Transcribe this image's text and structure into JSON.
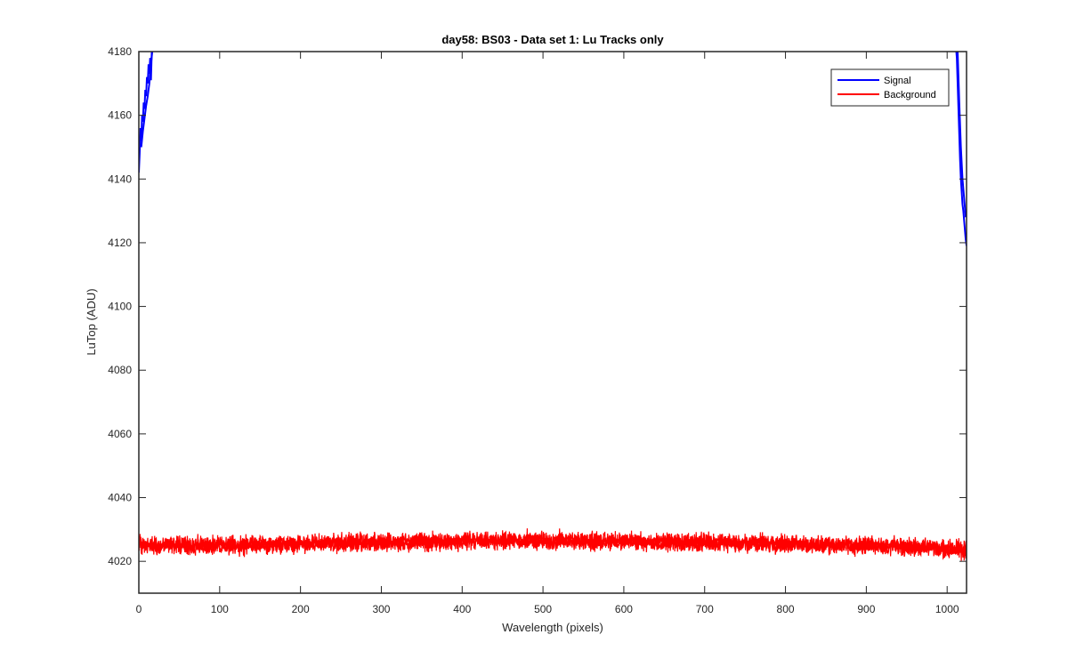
{
  "chart_data": {
    "type": "line",
    "title": "day58: BS03 - Data set 1: Lu Tracks only",
    "xlabel": "Wavelength (pixels)",
    "ylabel": "LuTop (ADU)",
    "xlim": [
      0,
      1024
    ],
    "ylim": [
      4010,
      4180
    ],
    "xticks": [
      0,
      100,
      200,
      300,
      400,
      500,
      600,
      700,
      800,
      900,
      1000
    ],
    "yticks": [
      4020,
      4040,
      4060,
      4080,
      4100,
      4120,
      4140,
      4160,
      4180
    ],
    "xtick_labels": [
      "0",
      "100",
      "200",
      "300",
      "400",
      "500",
      "600",
      "700",
      "800",
      "900",
      "1000"
    ],
    "ytick_labels": [
      "4020",
      "4040",
      "4060",
      "4080",
      "4100",
      "4120",
      "4140",
      "4160",
      "4180"
    ],
    "grid": false,
    "legend": "top-right",
    "series": [
      {
        "name": "Signal",
        "color": "#0000ff",
        "segments": [
          {
            "x": [
              0,
              1,
              2,
              3,
              4,
              5,
              6,
              7,
              8,
              9,
              10,
              11,
              12,
              13,
              14,
              15,
              16,
              17,
              18
            ],
            "y": [
              4142,
              4148,
              4156,
              4152,
              4160,
              4158,
              4164,
              4162,
              4168,
              4166,
              4172,
              4170,
              4176,
              4173,
              4178,
              4171,
              4180,
              4182,
              4184
            ]
          },
          {
            "x": [
              3,
              5,
              7,
              9,
              11,
              13,
              15,
              17
            ],
            "y": [
              4150,
              4155,
              4159,
              4163,
              4166,
              4170,
              4176,
              4181
            ]
          },
          {
            "x": [
              1010,
              1012,
              1013,
              1014,
              1015,
              1016,
              1017,
              1018,
              1019,
              1020,
              1021,
              1022,
              1023,
              1024
            ],
            "y": [
              4184,
              4178,
              4170,
              4162,
              4154,
              4146,
              4140,
              4136,
              4132,
              4130,
              4127,
              4124,
              4121,
              4119
            ]
          },
          {
            "x": [
              1013,
              1015,
              1017,
              1019,
              1021,
              1023
            ],
            "y": [
              4180,
              4164,
              4150,
              4140,
              4134,
              4128
            ]
          }
        ]
      },
      {
        "name": "Background",
        "color": "#ff0000",
        "noise_band": true,
        "x_range": [
          0,
          1024
        ],
        "baseline_points": {
          "x": [
            0,
            100,
            200,
            300,
            400,
            500,
            600,
            700,
            800,
            900,
            1000,
            1024
          ],
          "y": [
            4025,
            4025,
            4025.5,
            4026,
            4026.3,
            4026.5,
            4026.3,
            4026,
            4025.5,
            4025,
            4024,
            4023.5
          ]
        },
        "noise_amplitude": 2.5
      }
    ]
  }
}
